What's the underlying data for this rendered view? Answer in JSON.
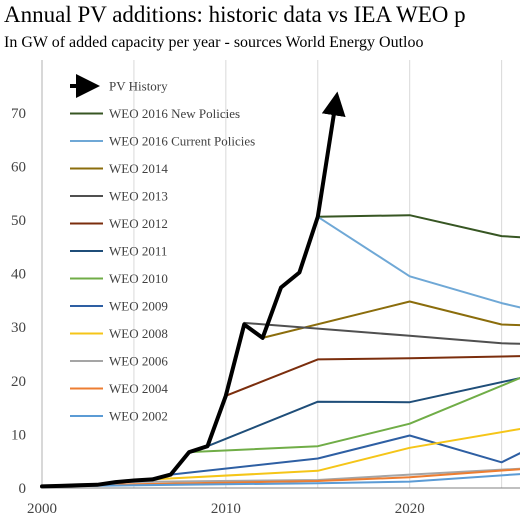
{
  "chart_data": {
    "type": "line",
    "title": "Annual PV additions: historic data vs IEA WEO p",
    "subtitle": "In GW of added capacity per year - sources World Energy Outloo",
    "xlabel": "",
    "ylabel": "",
    "xlim": [
      2000,
      2026
    ],
    "ylim": [
      0,
      75
    ],
    "xticks": [
      "2000",
      "2010",
      "2020"
    ],
    "yticks": [
      "0",
      "10",
      "20",
      "30",
      "40",
      "50",
      "60",
      "70"
    ],
    "grid": "vertical",
    "legend_position": "top-left",
    "series": [
      {
        "name": "PV History",
        "color": "#000000",
        "width": 4,
        "arrow": true,
        "x": [
          2000,
          2001,
          2002,
          2003,
          2004,
          2005,
          2006,
          2007,
          2008,
          2009,
          2010,
          2011,
          2012,
          2013,
          2014,
          2015,
          2016
        ],
        "y": [
          0.3,
          0.4,
          0.5,
          0.6,
          1.1,
          1.4,
          1.6,
          2.5,
          6.7,
          7.8,
          17.2,
          30.5,
          28.0,
          37.4,
          40.2,
          50.6,
          72.5
        ]
      },
      {
        "name": "WEO 2016 New Policies",
        "color": "#375623",
        "width": 2,
        "x": [
          2015,
          2020,
          2025,
          2026
        ],
        "y": [
          50.6,
          50.9,
          47.0,
          46.8
        ]
      },
      {
        "name": "WEO 2016 Current Policies",
        "color": "#6fa8d6",
        "width": 2,
        "x": [
          2015,
          2020,
          2025,
          2026
        ],
        "y": [
          50.6,
          39.5,
          34.5,
          33.7
        ]
      },
      {
        "name": "WEO 2014",
        "color": "#8b6d0c",
        "width": 2,
        "x": [
          2012,
          2020,
          2025,
          2026
        ],
        "y": [
          28.0,
          34.8,
          30.5,
          30.4
        ]
      },
      {
        "name": "WEO 2013",
        "color": "#505050",
        "width": 2,
        "x": [
          2011,
          2020,
          2025,
          2026
        ],
        "y": [
          30.8,
          28.4,
          27.0,
          26.9
        ]
      },
      {
        "name": "WEO 2012",
        "color": "#7b2e0d",
        "width": 2,
        "x": [
          2010,
          2015,
          2020,
          2026
        ],
        "y": [
          17.2,
          24.0,
          24.2,
          24.6
        ]
      },
      {
        "name": "WEO 2011",
        "color": "#1f4e79",
        "width": 2,
        "x": [
          2009,
          2015,
          2020,
          2026
        ],
        "y": [
          7.8,
          16.1,
          16.0,
          20.5
        ]
      },
      {
        "name": "WEO 2010",
        "color": "#70ad47",
        "width": 2,
        "x": [
          2008,
          2015,
          2020,
          2026
        ],
        "y": [
          6.7,
          7.8,
          12.0,
          20.5
        ]
      },
      {
        "name": "WEO 2009",
        "color": "#2e5fa3",
        "width": 2,
        "x": [
          2007,
          2015,
          2020,
          2025,
          2026
        ],
        "y": [
          2.5,
          5.5,
          9.8,
          4.8,
          6.5
        ]
      },
      {
        "name": "WEO 2008",
        "color": "#f5c518",
        "width": 2,
        "x": [
          2006,
          2015,
          2020,
          2026
        ],
        "y": [
          1.6,
          3.2,
          7.5,
          11.0
        ]
      },
      {
        "name": "WEO 2006",
        "color": "#a5a5a5",
        "width": 2,
        "x": [
          2004,
          2015,
          2020,
          2026
        ],
        "y": [
          1.1,
          1.5,
          2.5,
          3.6
        ]
      },
      {
        "name": "WEO 2004",
        "color": "#ed7d31",
        "width": 2,
        "x": [
          2002,
          2015,
          2020,
          2026
        ],
        "y": [
          0.5,
          1.3,
          2.0,
          3.5
        ]
      },
      {
        "name": "WEO 2002",
        "color": "#5b9bd5",
        "width": 2,
        "x": [
          2000,
          2015,
          2020,
          2026
        ],
        "y": [
          0.3,
          0.9,
          1.2,
          2.6
        ]
      }
    ]
  }
}
